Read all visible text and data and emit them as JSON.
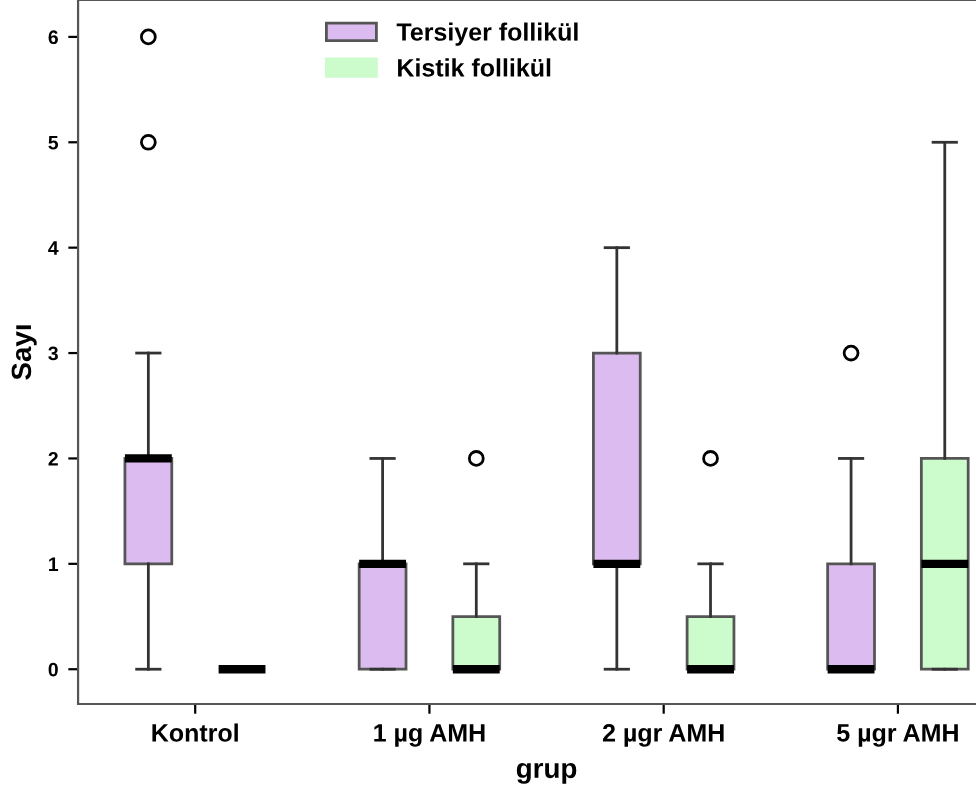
{
  "chart_data": {
    "type": "box",
    "xlabel": "grup",
    "ylabel": "Sayı",
    "categories": [
      "Kontrol",
      "1 µg AMH",
      "2 µgr AMH",
      "5 µgr AMH"
    ],
    "ylim": [
      -0.33,
      6.35
    ],
    "yticks": [
      0,
      1,
      2,
      3,
      4,
      5,
      6
    ],
    "grid": false,
    "legend": "top",
    "series": [
      {
        "name": "Tersiyer follikül",
        "color": "#dcbcf0",
        "boxes": [
          {
            "low": 0,
            "q1": 1,
            "median": 2,
            "q3": 2,
            "high": 3,
            "outliers": [
              5,
              6
            ]
          },
          {
            "low": 0,
            "q1": 0,
            "median": 1,
            "q3": 1,
            "high": 2
          },
          {
            "low": 0,
            "q1": 1,
            "median": 1,
            "q3": 3,
            "high": 4
          },
          {
            "low": 0,
            "q1": 0,
            "median": 0,
            "q3": 1,
            "high": 2,
            "outliers": [
              3
            ]
          }
        ]
      },
      {
        "name": "Kistik follikül",
        "color": "#ccfccc",
        "boxes": [
          {
            "low": 0,
            "q1": 0,
            "median": 0,
            "q3": 0,
            "high": 0
          },
          {
            "low": 0,
            "q1": 0,
            "median": 0,
            "q3": 0.5,
            "high": 1,
            "outliers": [
              2
            ]
          },
          {
            "low": 0,
            "q1": 0,
            "median": 0,
            "q3": 0.5,
            "high": 1,
            "outliers": [
              2
            ]
          },
          {
            "low": 0,
            "q1": 0,
            "median": 1,
            "q3": 2,
            "high": 5
          }
        ]
      }
    ]
  }
}
